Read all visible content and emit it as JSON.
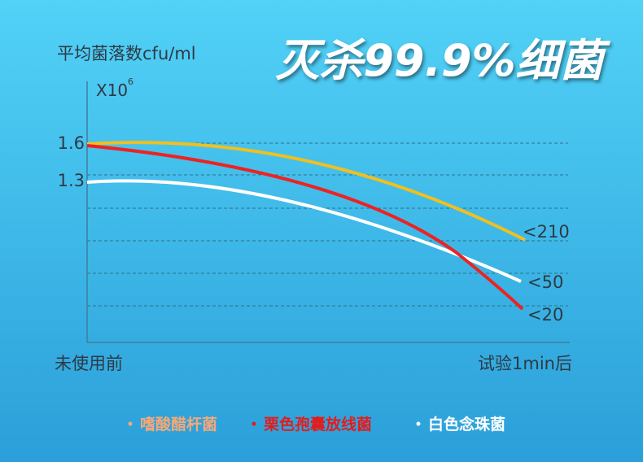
{
  "header": {
    "title": "灭杀99.9%细菌"
  },
  "axis": {
    "y_label": "平均菌落数cfu/ml",
    "unit_base": "X10",
    "unit_exp": "6",
    "ticks": [
      "1.6",
      "1.3"
    ],
    "x_start": "未使用前",
    "x_end": "试验1min后"
  },
  "end_labels": [
    "<210",
    "<50",
    "<20"
  ],
  "legend": [
    "嗜酸醋杆菌",
    "栗色孢囊放线菌",
    "白色念珠菌"
  ]
}
